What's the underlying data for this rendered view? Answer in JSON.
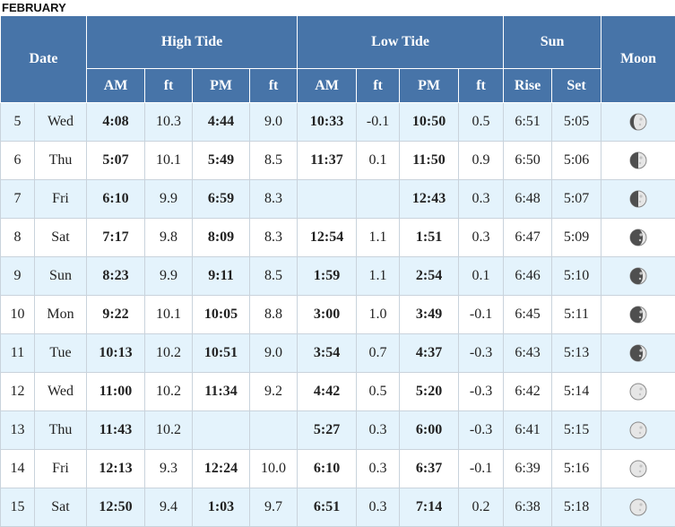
{
  "month": "FEBRUARY",
  "headers": {
    "date": "Date",
    "high_tide": "High Tide",
    "low_tide": "Low Tide",
    "sun": "Sun",
    "moon": "Moon",
    "am": "AM",
    "ft": "ft",
    "pm": "PM",
    "rise": "Rise",
    "set": "Set"
  },
  "rows": [
    {
      "day": "5",
      "dow": "Wed",
      "h_am": "4:08",
      "h_am_ft": "10.3",
      "h_pm": "4:44",
      "h_pm_ft": "9.0",
      "l_am": "10:33",
      "l_am_ft": "-0.1",
      "l_pm": "10:50",
      "l_pm_ft": "0.5",
      "rise": "6:51",
      "set": "5:05",
      "moon_phase": "waxing-crescent",
      "moon_icon": "moon-phase-icon"
    },
    {
      "day": "6",
      "dow": "Thu",
      "h_am": "5:07",
      "h_am_ft": "10.1",
      "h_pm": "5:49",
      "h_pm_ft": "8.5",
      "l_am": "11:37",
      "l_am_ft": "0.1",
      "l_pm": "11:50",
      "l_pm_ft": "0.9",
      "rise": "6:50",
      "set": "5:06",
      "moon_phase": "first-quarter",
      "moon_icon": "moon-phase-icon"
    },
    {
      "day": "7",
      "dow": "Fri",
      "h_am": "6:10",
      "h_am_ft": "9.9",
      "h_pm": "6:59",
      "h_pm_ft": "8.3",
      "l_am": "",
      "l_am_ft": "",
      "l_pm": "12:43",
      "l_pm_ft": "0.3",
      "rise": "6:48",
      "set": "5:07",
      "moon_phase": "first-quarter",
      "moon_icon": "moon-phase-icon"
    },
    {
      "day": "8",
      "dow": "Sat",
      "h_am": "7:17",
      "h_am_ft": "9.8",
      "h_pm": "8:09",
      "h_pm_ft": "8.3",
      "l_am": "12:54",
      "l_am_ft": "1.1",
      "l_pm": "1:51",
      "l_pm_ft": "0.3",
      "rise": "6:47",
      "set": "5:09",
      "moon_phase": "waxing-gibbous",
      "moon_icon": "moon-phase-icon"
    },
    {
      "day": "9",
      "dow": "Sun",
      "h_am": "8:23",
      "h_am_ft": "9.9",
      "h_pm": "9:11",
      "h_pm_ft": "8.5",
      "l_am": "1:59",
      "l_am_ft": "1.1",
      "l_pm": "2:54",
      "l_pm_ft": "0.1",
      "rise": "6:46",
      "set": "5:10",
      "moon_phase": "waxing-gibbous",
      "moon_icon": "moon-phase-icon"
    },
    {
      "day": "10",
      "dow": "Mon",
      "h_am": "9:22",
      "h_am_ft": "10.1",
      "h_pm": "10:05",
      "h_pm_ft": "8.8",
      "l_am": "3:00",
      "l_am_ft": "1.0",
      "l_pm": "3:49",
      "l_pm_ft": "-0.1",
      "rise": "6:45",
      "set": "5:11",
      "moon_phase": "waxing-gibbous",
      "moon_icon": "moon-phase-icon"
    },
    {
      "day": "11",
      "dow": "Tue",
      "h_am": "10:13",
      "h_am_ft": "10.2",
      "h_pm": "10:51",
      "h_pm_ft": "9.0",
      "l_am": "3:54",
      "l_am_ft": "0.7",
      "l_pm": "4:37",
      "l_pm_ft": "-0.3",
      "rise": "6:43",
      "set": "5:13",
      "moon_phase": "waxing-gibbous",
      "moon_icon": "moon-phase-icon"
    },
    {
      "day": "12",
      "dow": "Wed",
      "h_am": "11:00",
      "h_am_ft": "10.2",
      "h_pm": "11:34",
      "h_pm_ft": "9.2",
      "l_am": "4:42",
      "l_am_ft": "0.5",
      "l_pm": "5:20",
      "l_pm_ft": "-0.3",
      "rise": "6:42",
      "set": "5:14",
      "moon_phase": "full",
      "moon_icon": "moon-phase-icon"
    },
    {
      "day": "13",
      "dow": "Thu",
      "h_am": "11:43",
      "h_am_ft": "10.2",
      "h_pm": "",
      "h_pm_ft": "",
      "l_am": "5:27",
      "l_am_ft": "0.3",
      "l_pm": "6:00",
      "l_pm_ft": "-0.3",
      "rise": "6:41",
      "set": "5:15",
      "moon_phase": "full",
      "moon_icon": "moon-phase-icon"
    },
    {
      "day": "14",
      "dow": "Fri",
      "h_am": "12:13",
      "h_am_ft": "9.3",
      "h_pm": "12:24",
      "h_pm_ft": "10.0",
      "l_am": "6:10",
      "l_am_ft": "0.3",
      "l_pm": "6:37",
      "l_pm_ft": "-0.1",
      "rise": "6:39",
      "set": "5:16",
      "moon_phase": "full",
      "moon_icon": "moon-phase-icon"
    },
    {
      "day": "15",
      "dow": "Sat",
      "h_am": "12:50",
      "h_am_ft": "9.4",
      "h_pm": "1:03",
      "h_pm_ft": "9.7",
      "l_am": "6:51",
      "l_am_ft": "0.3",
      "l_pm": "7:14",
      "l_pm_ft": "0.2",
      "rise": "6:38",
      "set": "5:18",
      "moon_phase": "full",
      "moon_icon": "moon-phase-icon"
    }
  ]
}
